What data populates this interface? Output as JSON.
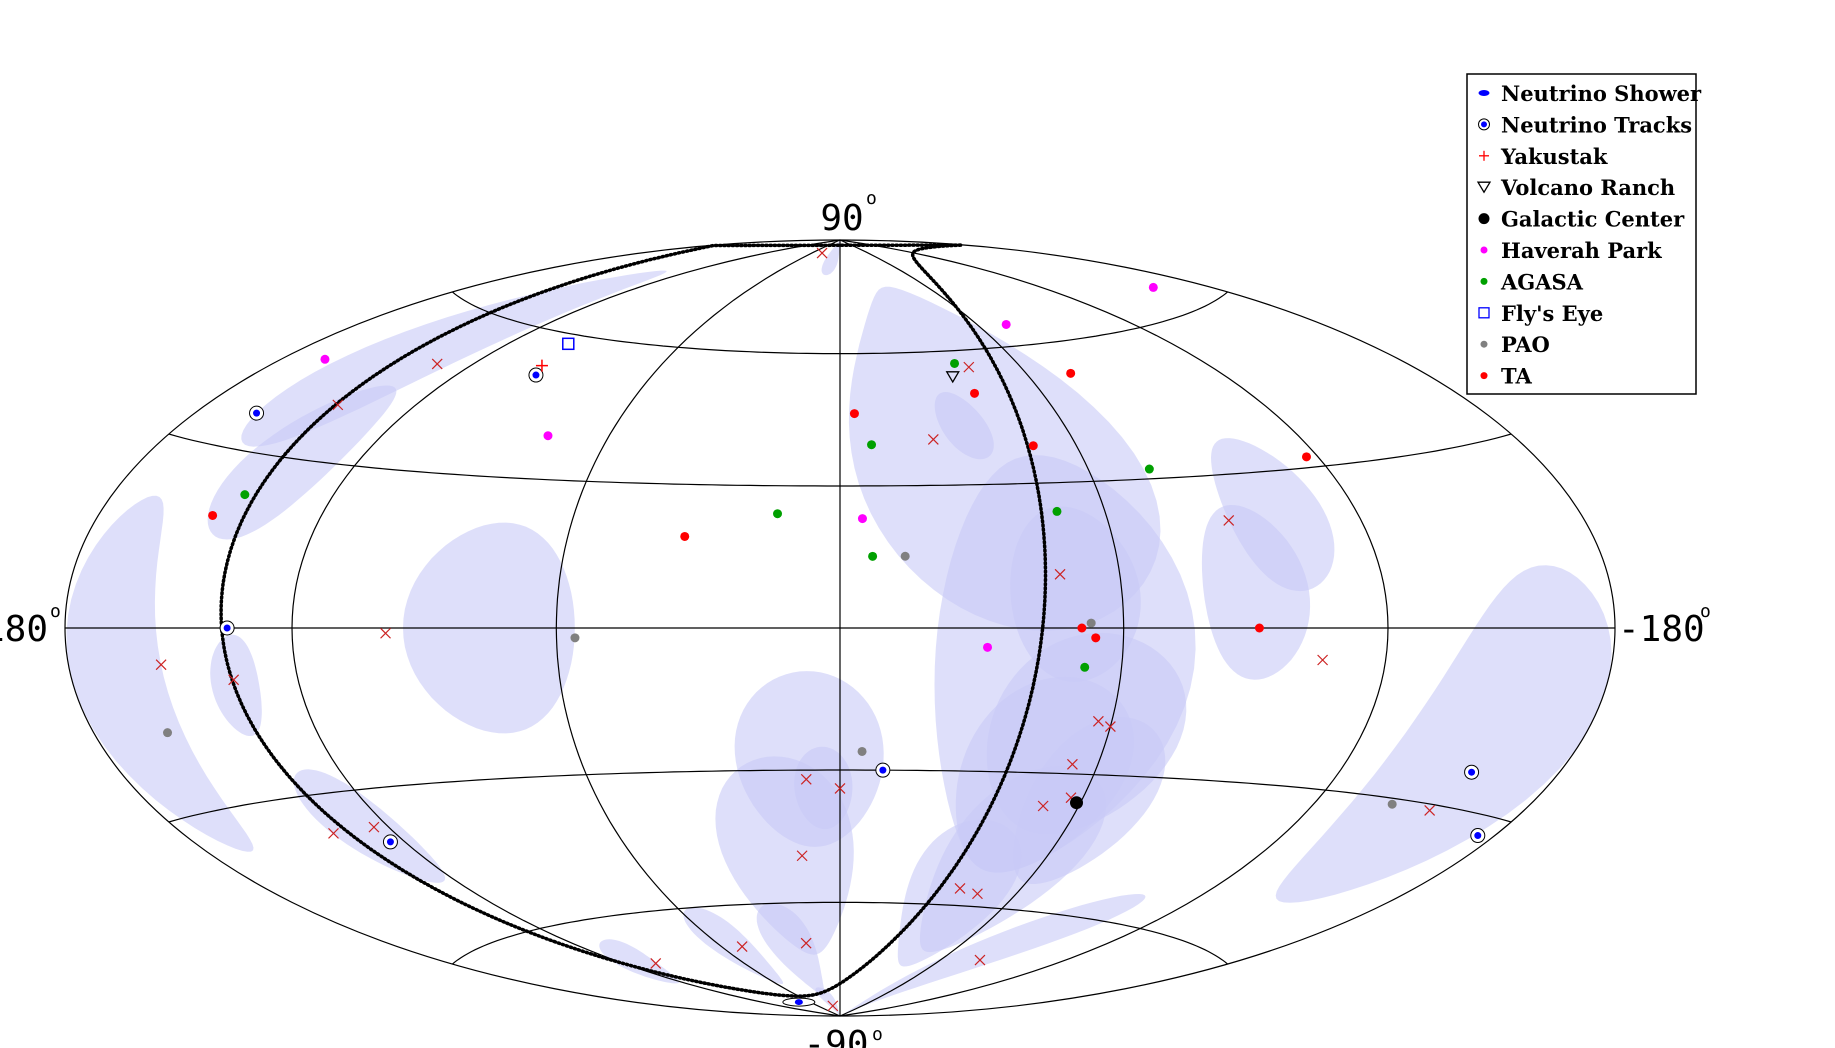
{
  "chart_data": {
    "type": "scatter",
    "projection": "Hammer-Aitoff (galactic coordinates, longitude increasing to the left)",
    "grid": true,
    "legend_position": "top-right",
    "ticks": {
      "top": {
        "value": "90",
        "degree": "o"
      },
      "bottom": {
        "value": "-90",
        "degree": "o"
      },
      "left": {
        "value": "180",
        "degree": "o"
      },
      "right": {
        "value": "-180",
        "degree": "o"
      }
    },
    "colors": {
      "region_fill": "#c8caf6",
      "neutrino": "#0000ff",
      "yakutsk": "#ff0000",
      "galactic_center": "#000000",
      "haverah": "#ff00ff",
      "agasa": "#00a000",
      "flys_eye": "#0000ff",
      "pao": "#808080",
      "ta": "#ff0000",
      "neutrino_cross": "#cc2222"
    },
    "legend": [
      {
        "key": "shower",
        "label": "Neutrino Shower",
        "marker": "filled-ellipse",
        "color": "#0000ff"
      },
      {
        "key": "tracks",
        "label": "Neutrino Tracks",
        "marker": "ringed-dot",
        "color": "#0000ff"
      },
      {
        "key": "yakutsk",
        "label": "Yakustak",
        "marker": "plus",
        "color": "#ff0000"
      },
      {
        "key": "volcano",
        "label": "Volcano Ranch",
        "marker": "down-triangle",
        "color": "#000000"
      },
      {
        "key": "gc",
        "label": "Galactic Center",
        "marker": "big-dot",
        "color": "#000000"
      },
      {
        "key": "haverah",
        "label": "Haverah Park",
        "marker": "dot",
        "color": "#ff00ff"
      },
      {
        "key": "agasa",
        "label": "AGASA",
        "marker": "dot",
        "color": "#00a000"
      },
      {
        "key": "flyseye",
        "label": "Fly's Eye",
        "marker": "open-square",
        "color": "#0000ff"
      },
      {
        "key": "pao",
        "label": "PAO",
        "marker": "dot",
        "color": "#808080"
      },
      {
        "key": "ta",
        "label": "TA",
        "marker": "dot",
        "color": "#ff0000"
      }
    ],
    "shower_regions": [
      {
        "l": 13,
        "b": 87,
        "rl": 11,
        "rb": 7,
        "rot": 0
      },
      {
        "l": 143,
        "b": 53,
        "rl": 15,
        "rb": 26,
        "rot": 40
      },
      {
        "l": 138,
        "b": 30,
        "rl": 12,
        "rb": 16,
        "rot": 35
      },
      {
        "l": 167,
        "b": -8,
        "rl": 13,
        "rb": 29,
        "rot": 0
      },
      {
        "l": 136,
        "b": -10,
        "rl": 6,
        "rb": 9,
        "rot": 15
      },
      {
        "l": 127,
        "b": -37,
        "rl": 10,
        "rb": 12,
        "rot": -30
      },
      {
        "l": 114,
        "b": -70,
        "rl": 15,
        "rb": 4,
        "rot": -15
      },
      {
        "l": 75,
        "b": 0,
        "rl": 19,
        "rb": 21,
        "rot": 0
      },
      {
        "l": 7,
        "b": -28,
        "rl": 17,
        "rb": 19,
        "rot": 0
      },
      {
        "l": 4,
        "b": -34,
        "rl": 7,
        "rb": 9,
        "rot": 0
      },
      {
        "l": 15,
        "b": -50,
        "rl": 19,
        "rb": 23,
        "rot": 0
      },
      {
        "l": 55,
        "b": -70,
        "rl": 11,
        "rb": 10,
        "rot": -15
      },
      {
        "l": 25,
        "b": -72,
        "rl": 12,
        "rb": 12,
        "rot": 0
      },
      {
        "l": 20,
        "b": -86,
        "rl": 12,
        "rb": 4,
        "rot": 8
      },
      {
        "l": -38,
        "b": 38,
        "rl": 34,
        "rb": 40,
        "rot": -30
      },
      {
        "l": -33,
        "b": 43,
        "rl": 6,
        "rb": 8,
        "rot": -30
      },
      {
        "l": -48,
        "b": -8,
        "rl": 28,
        "rb": 44,
        "rot": 0
      },
      {
        "l": -50,
        "b": 7,
        "rl": 14,
        "rb": 18,
        "rot": 0
      },
      {
        "l": -55,
        "b": -22,
        "rl": 22,
        "rb": 21,
        "rot": 0
      },
      {
        "l": -48,
        "b": -31,
        "rl": 20,
        "rb": 21,
        "rot": 0
      },
      {
        "l": -62,
        "b": -36,
        "rl": 16,
        "rb": 18,
        "rot": 0
      },
      {
        "l": -50,
        "b": -50,
        "rl": 20,
        "rb": 22,
        "rot": 30
      },
      {
        "l": -40,
        "b": -58,
        "rl": 19,
        "rb": 16,
        "rot": 45
      },
      {
        "l": -75,
        "b": -72,
        "rl": 34,
        "rb": 8,
        "rot": -30
      },
      {
        "l": -90,
        "b": 7,
        "rl": 12,
        "rb": 17,
        "rot": 0
      },
      {
        "l": -100,
        "b": 22,
        "rl": 12,
        "rb": 15,
        "rot": 0
      },
      {
        "l": -155,
        "b": -20,
        "rl": 23,
        "rb": 32,
        "rot": 30
      }
    ],
    "neutrino_crosses": [
      [
        40,
        86
      ],
      [
        131,
        50
      ],
      [
        142,
        40
      ],
      [
        124,
        -37
      ],
      [
        154,
        -6
      ],
      [
        136,
        -9
      ],
      [
        137,
        -37
      ],
      [
        106,
        -71
      ],
      [
        50,
        -70
      ],
      [
        98,
        -1
      ],
      [
        8,
        -32
      ],
      [
        0,
        -34
      ],
      [
        11,
        -49
      ],
      [
        17,
        -70
      ],
      [
        21,
        -87
      ],
      [
        -24,
        40
      ],
      [
        -43,
        56
      ],
      [
        -47,
        11
      ],
      [
        -57,
        -19
      ],
      [
        -60,
        -20
      ],
      [
        -54,
        -28
      ],
      [
        -51,
        -37
      ],
      [
        -57,
        -35
      ],
      [
        -40,
        -56
      ],
      [
        -47,
        -57
      ],
      [
        -88,
        21
      ],
      [
        -105,
        -6
      ],
      [
        -81,
        -72
      ],
      [
        -153,
        -31
      ]
    ],
    "neutrino_tracks": [
      [
        162,
        36
      ],
      [
        96,
        51
      ],
      [
        136,
        0
      ],
      [
        124,
        -40
      ],
      [
        -10,
        -30
      ],
      [
        -175,
        -33
      ],
      [
        -155,
        -24
      ]
    ],
    "neutrino_showers": [
      [
        78,
        -85
      ]
    ],
    "yakutsk": [
      [
        98,
        53
      ]
    ],
    "volcano_ranch": [
      [
        -36,
        54
      ]
    ],
    "galactic_center": [
      [
        -59,
        -36
      ]
    ],
    "haverah_park": [
      [
        167,
        46
      ],
      [
        76,
        39
      ],
      [
        -5,
        23
      ],
      [
        -31,
        -4
      ],
      [
        -72,
        65
      ],
      [
        -162,
        65
      ]
    ],
    "agasa": [
      [
        14,
        24
      ],
      [
        -8,
        39
      ],
      [
        -7,
        15
      ],
      [
        -49,
        24
      ],
      [
        -39,
        57
      ],
      [
        -75,
        32
      ],
      [
        -52,
        -8
      ],
      [
        143,
        23
      ]
    ],
    "flys_eye": [
      [
        100,
        58
      ]
    ],
    "pao": [
      [
        -14,
        15
      ],
      [
        56,
        -2
      ],
      [
        -53,
        1
      ],
      [
        -5,
        -26
      ],
      [
        159,
        -17
      ],
      [
        -141,
        -31
      ]
    ],
    "ta": [
      [
        -4,
        46
      ],
      [
        148,
        19
      ],
      [
        34,
        19
      ],
      [
        -40,
        50
      ],
      [
        -49,
        38
      ],
      [
        -74,
        53
      ],
      [
        -54,
        -2
      ],
      [
        -51,
        0
      ],
      [
        -117,
        32
      ],
      [
        -90,
        0
      ]
    ],
    "galactic_plane_trace_text": "dotted line (supergalactic plane)"
  }
}
